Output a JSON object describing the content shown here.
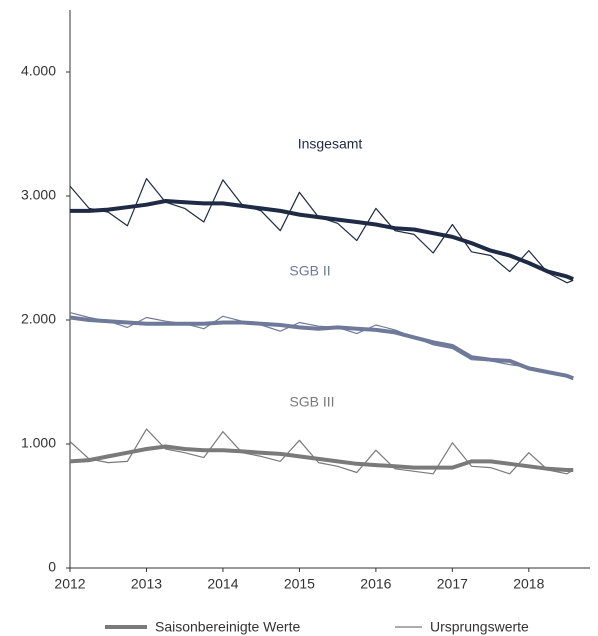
{
  "chart_data": {
    "type": "line",
    "x": [
      2012,
      2012.25,
      2012.5,
      2012.75,
      2013,
      2013.25,
      2013.5,
      2013.75,
      2014,
      2014.25,
      2014.5,
      2014.75,
      2015,
      2015.25,
      2015.5,
      2015.75,
      2016,
      2016.25,
      2016.5,
      2016.75,
      2017,
      2017.25,
      2017.5,
      2017.75,
      2018,
      2018.25,
      2018.5,
      2018.58
    ],
    "series": [
      {
        "color": "#1f2a44",
        "width": 4,
        "values": [
          2880,
          2880,
          2890,
          2910,
          2930,
          2960,
          2950,
          2940,
          2940,
          2920,
          2900,
          2880,
          2850,
          2830,
          2810,
          2790,
          2770,
          2740,
          2730,
          2700,
          2670,
          2620,
          2560,
          2520,
          2460,
          2390,
          2350,
          2330
        ]
      },
      {
        "color": "#1f2a44",
        "width": 1.2,
        "values": [
          3080,
          2900,
          2870,
          2760,
          3140,
          2950,
          2900,
          2790,
          3130,
          2930,
          2880,
          2720,
          3030,
          2830,
          2780,
          2640,
          2900,
          2720,
          2690,
          2540,
          2770,
          2550,
          2520,
          2390,
          2560,
          2380,
          2300,
          2320
        ]
      },
      {
        "color": "#6f7a9a",
        "width": 4,
        "values": [
          2020,
          2000,
          1990,
          1980,
          1970,
          1970,
          1970,
          1970,
          1980,
          1980,
          1970,
          1960,
          1940,
          1930,
          1940,
          1930,
          1920,
          1900,
          1860,
          1820,
          1790,
          1700,
          1680,
          1670,
          1610,
          1580,
          1550,
          1530
        ]
      },
      {
        "color": "#6f7a9a",
        "width": 1.2,
        "values": [
          2060,
          2020,
          1990,
          1940,
          2020,
          1990,
          1970,
          1930,
          2030,
          1990,
          1960,
          1910,
          1980,
          1950,
          1940,
          1890,
          1960,
          1920,
          1860,
          1800,
          1770,
          1680,
          1670,
          1640,
          1620,
          1590,
          1550,
          1520
        ]
      },
      {
        "color": "#7a7a7a",
        "width": 4,
        "values": [
          860,
          870,
          900,
          930,
          960,
          980,
          960,
          950,
          950,
          940,
          930,
          920,
          900,
          880,
          860,
          840,
          830,
          820,
          810,
          810,
          810,
          860,
          860,
          840,
          820,
          800,
          790,
          790
        ]
      },
      {
        "color": "#7a7a7a",
        "width": 1.2,
        "values": [
          1020,
          880,
          850,
          860,
          1120,
          960,
          930,
          890,
          1100,
          930,
          900,
          860,
          1030,
          850,
          820,
          770,
          950,
          800,
          780,
          760,
          1010,
          820,
          810,
          760,
          930,
          790,
          760,
          790
        ]
      }
    ],
    "xlim": [
      2012,
      2018.8
    ],
    "xticks": [
      2012,
      2013,
      2014,
      2015,
      2016,
      2017,
      2018
    ],
    "ylim": [
      0,
      4500
    ],
    "yticks": [
      0,
      {
        "value": 1000,
        "label": "1.000"
      },
      {
        "value": 2000,
        "label": "2.000"
      },
      {
        "value": 3000,
        "label": "3.000"
      },
      {
        "value": 4000,
        "label": "4.000"
      }
    ],
    "annotations": [
      "Insgesamt",
      "SGB II",
      "SGB III"
    ],
    "legend": [
      {
        "label": "Saisonbereinigte Werte",
        "color": "#7a7a7a",
        "width": 4
      },
      {
        "label": "Ursprungswerte",
        "color": "#7a7a7a",
        "width": 1.2
      }
    ],
    "grid": false
  }
}
